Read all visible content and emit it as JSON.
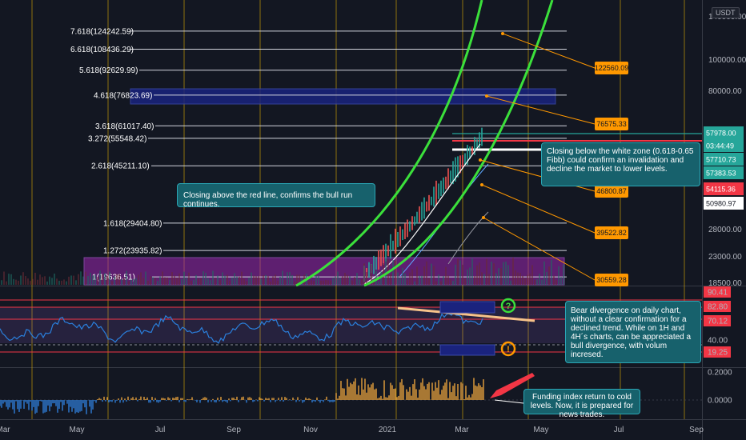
{
  "chart_data": {
    "type": "line",
    "currency": "USDT",
    "time_axis_labels": [
      "Mar",
      "May",
      "Jul",
      "Sep",
      "Nov",
      "2021",
      "Mar",
      "May",
      "Jul",
      "Sep"
    ],
    "price_axis": {
      "scale": "log",
      "ticks": [
        "140000.00",
        "100000.00",
        "80000.00",
        "28000.00",
        "23000.00",
        "18500.00"
      ]
    },
    "fib_levels": [
      {
        "label": "7.618(124242.59)",
        "value": 124242.59
      },
      {
        "label": "6.618(108436.29)",
        "value": 108436.29
      },
      {
        "label": "5.618(92629.99)",
        "value": 92629.99
      },
      {
        "label": "4.618(76823.69)",
        "value": 76823.69
      },
      {
        "label": "3.618(61017.40)",
        "value": 61017.4
      },
      {
        "label": "3.272(55548.42)",
        "value": 55548.42
      },
      {
        "label": "2.618(45211.10)",
        "value": 45211.1
      },
      {
        "label": "1.618(29404.80)",
        "value": 29404.8
      },
      {
        "label": "1.272(23935.82)",
        "value": 23935.82
      },
      {
        "label": "1(19636.51)",
        "value": 19636.51
      }
    ],
    "target_tags": [
      "122560.09",
      "76575.33",
      "46800.87",
      "39522.82",
      "30559.28"
    ],
    "price_tags": [
      {
        "value": "57978.00",
        "color": "#26a69a"
      },
      {
        "value": "03:44:49",
        "color": "#26a69a"
      },
      {
        "value": "57710.73",
        "color": "#26a69a"
      },
      {
        "value": "57383.53",
        "color": "#26a69a"
      },
      {
        "value": "54115.36",
        "color": "#f23645"
      },
      {
        "value": "50980.97",
        "color": "#ffffff"
      }
    ],
    "rsi_axis": {
      "ticks": [
        "90.41",
        "82.80",
        "70.12",
        "40.00",
        "19.25"
      ]
    },
    "funding_axis": {
      "ticks": [
        "0.2000",
        "0.0000"
      ]
    },
    "annotations": {
      "white_zone": "Closing below the white zone (0.618-0.65 Fibb) could confirm an invalidation and decline the market to lower levels.",
      "red_line": "Closing above the red line, confirms the bull run continues.",
      "divergence": "Bear divergence on daily chart, without a clear confirmation for a declined trend. While on 1H and 4H´s charts, can be appreciated a bull divergence, with volum incresed.",
      "funding": "Funding index return to cold levels. Now, it is prepared for news trades."
    },
    "rsi_signals": [
      "?",
      "!"
    ],
    "colors": {
      "background": "#131722",
      "fib_line": "#d1d4dc",
      "gridline": "#e0b000",
      "arc": "#3be03b",
      "blue_zone": "#1a237e",
      "magenta_zone": "#9c27b0",
      "rsi_line": "#2a7fdc",
      "funding_positive": "#e8a23c",
      "funding_negative": "#2f7ed8",
      "target_tag": "#ff9800",
      "note_bg": "#17616c"
    }
  }
}
